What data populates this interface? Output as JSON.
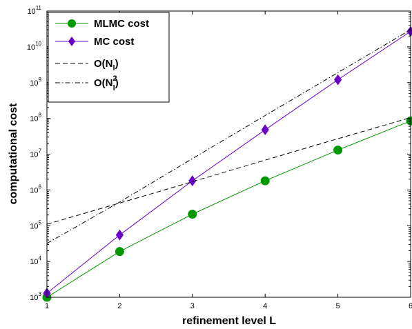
{
  "chart_data": {
    "type": "line",
    "xlabel": "refinement level L",
    "ylabel": "computational cost",
    "x": [
      1,
      2,
      3,
      4,
      5,
      6
    ],
    "xlim": [
      1,
      6
    ],
    "ylim": [
      1000,
      100000000000
    ],
    "yscale": "log",
    "grid": false,
    "legend_position": "top-left",
    "x_ticks": [
      "1",
      "2",
      "3",
      "4",
      "5",
      "6"
    ],
    "y_ticks": [
      {
        "value": 1000,
        "base": "10",
        "exp": "3"
      },
      {
        "value": 10000,
        "base": "10",
        "exp": "4"
      },
      {
        "value": 100000,
        "base": "10",
        "exp": "5"
      },
      {
        "value": 1000000,
        "base": "10",
        "exp": "6"
      },
      {
        "value": 10000000,
        "base": "10",
        "exp": "7"
      },
      {
        "value": 100000000,
        "base": "10",
        "exp": "8"
      },
      {
        "value": 1000000000,
        "base": "10",
        "exp": "9"
      },
      {
        "value": 10000000000,
        "base": "10",
        "exp": "10"
      },
      {
        "value": 100000000000,
        "base": "10",
        "exp": "11"
      }
    ],
    "series": [
      {
        "name": "MLMC cost",
        "color": "#009900",
        "marker": "circle",
        "dash": "solid",
        "values": [
          1000,
          19000,
          210000,
          1800000,
          13000000,
          85000000
        ]
      },
      {
        "name": "MC cost",
        "color": "#6a00c8",
        "marker": "diamond",
        "dash": "solid",
        "values": [
          1300,
          55000,
          1800000,
          48000000,
          1200000000,
          27000000000
        ]
      },
      {
        "name": "O(N_l)",
        "label_main": "O(N",
        "label_sub": "l",
        "label_sup": "",
        "label_close": ")",
        "color": "#000000",
        "marker": "none",
        "dash": "dashed",
        "values": [
          110000,
          430000,
          1700000,
          6800000,
          27000000,
          105000000
        ]
      },
      {
        "name": "O(N_l^2)",
        "label_main": "O(N",
        "label_sub": "l",
        "label_sup": "2",
        "label_close": ")",
        "color": "#000000",
        "marker": "none",
        "dash": "dashdot",
        "values": [
          32000,
          460000,
          7500000,
          120000000,
          1900000000,
          30000000000
        ]
      }
    ]
  }
}
